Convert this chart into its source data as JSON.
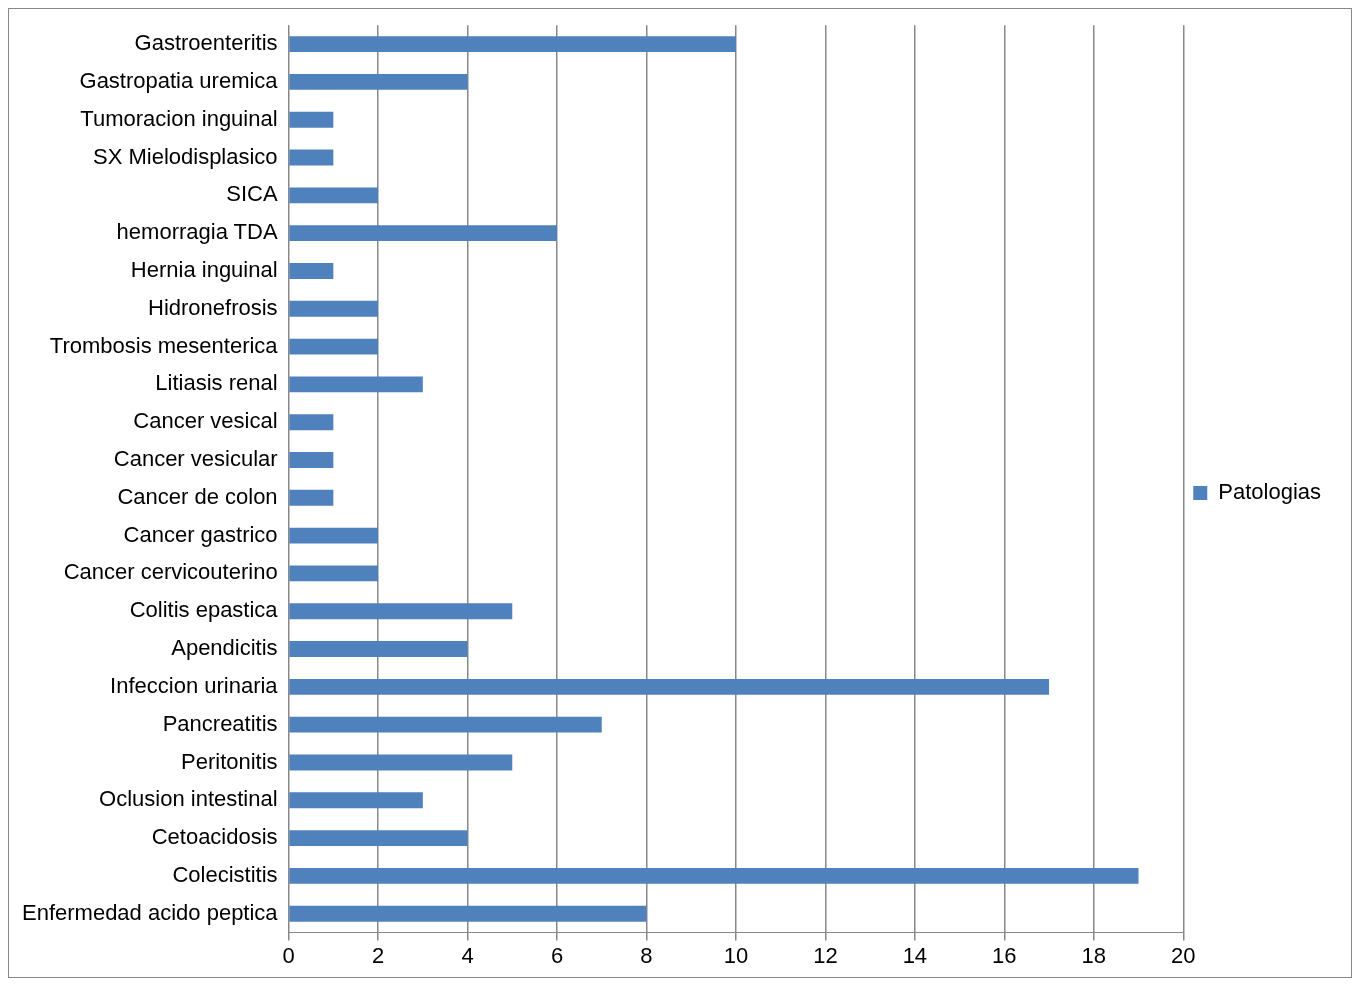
{
  "chart_data": {
    "type": "bar",
    "orientation": "horizontal",
    "categories": [
      "Gastroenteritis",
      "Gastropatia uremica",
      "Tumoracion inguinal",
      "SX Mielodisplasico",
      "SICA",
      "hemorragia TDA",
      "Hernia inguinal",
      "Hidronefrosis",
      "Trombosis mesenterica",
      "Litiasis renal",
      "Cancer vesical",
      "Cancer vesicular",
      "Cancer de colon",
      "Cancer gastrico",
      "Cancer cervicouterino",
      "Colitis epastica",
      "Apendicitis",
      "Infeccion urinaria",
      "Pancreatitis",
      "Peritonitis",
      "Oclusion intestinal",
      "Cetoacidosis",
      "Colecistitis",
      "Enfermedad acido peptica"
    ],
    "series": [
      {
        "name": "Patologias",
        "color": "#4f81bd",
        "values": [
          10,
          4,
          1,
          1,
          2,
          6,
          1,
          2,
          2,
          3,
          1,
          1,
          1,
          2,
          2,
          5,
          4,
          17,
          7,
          5,
          3,
          4,
          19,
          8
        ]
      }
    ],
    "xlim": [
      0,
      20
    ],
    "xticks": [
      0,
      2,
      4,
      6,
      8,
      10,
      12,
      14,
      16,
      18,
      20
    ],
    "grid": "x",
    "legend": "right"
  }
}
